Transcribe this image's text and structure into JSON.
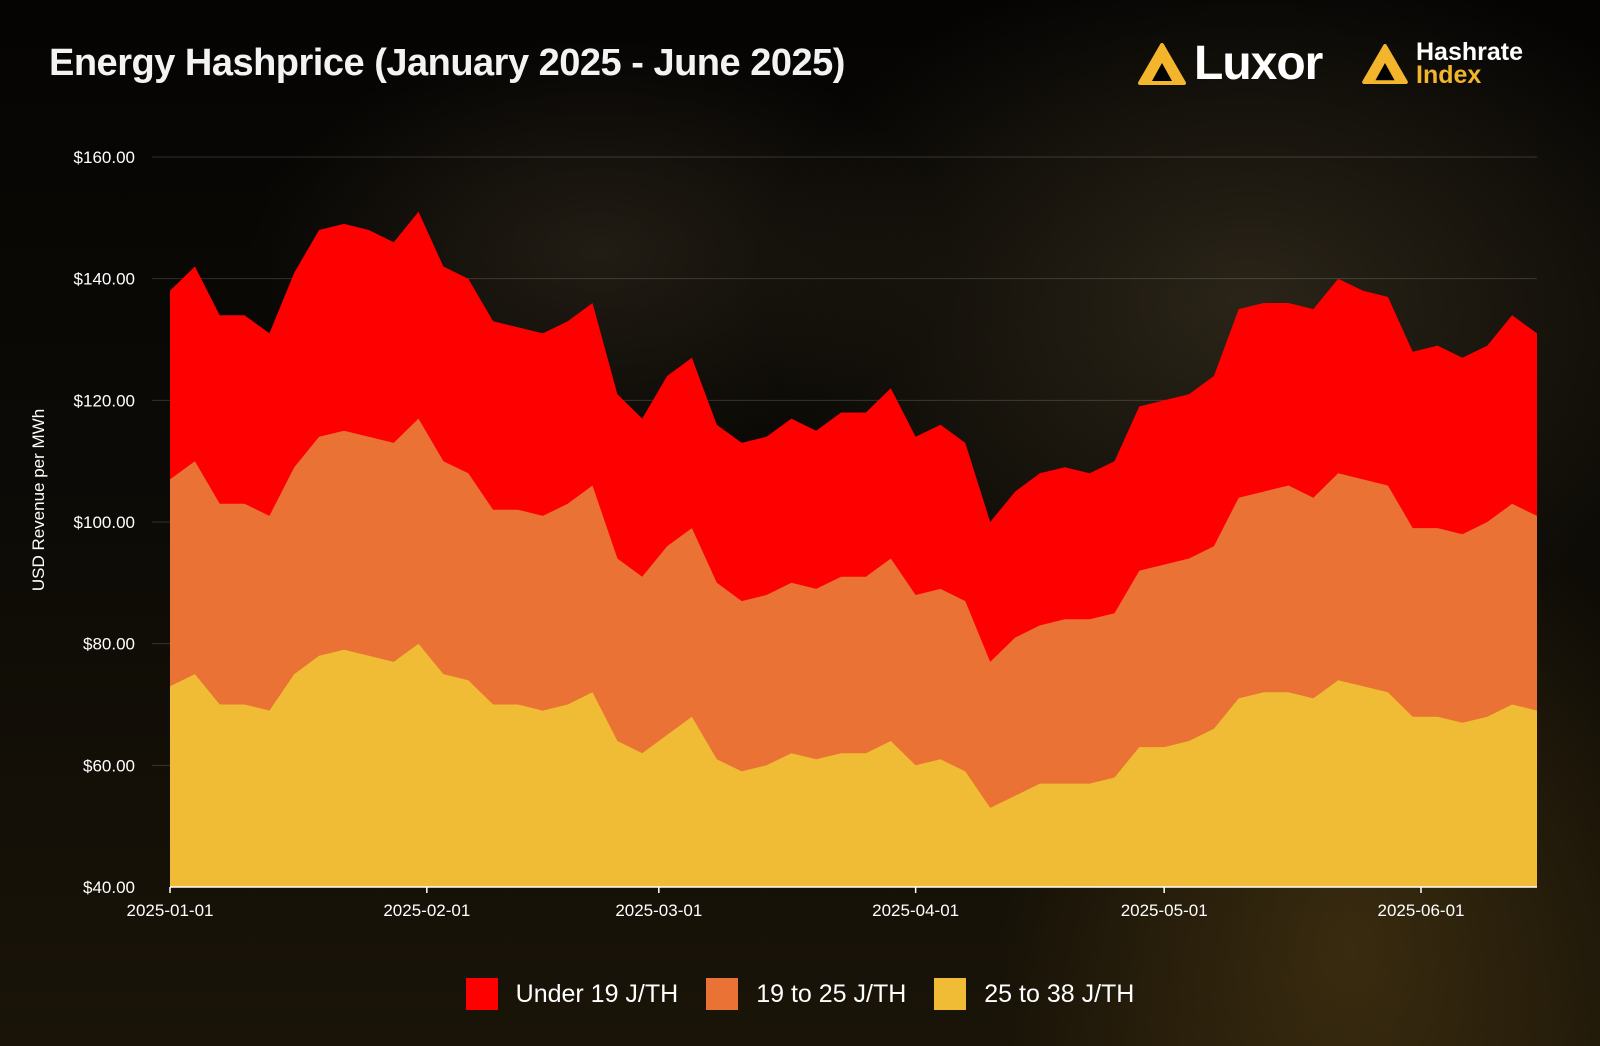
{
  "header": {
    "title": "Energy Hashprice (January 2025  - June 2025)",
    "luxor_word": "Luxor",
    "hashrate_index_line1": "Hashrate",
    "hashrate_index_line2": "Index"
  },
  "chart_data": {
    "type": "area",
    "stacked": false,
    "title": "Energy Hashprice (January 2025  - June 2025)",
    "xlabel": "",
    "ylabel": "USD Revenue per MWh",
    "ylim": [
      40,
      160
    ],
    "yticks": [
      "$40.00",
      "$60.00",
      "$80.00",
      "$100.00",
      "$120.00",
      "$140.00",
      "$160.00"
    ],
    "xticks": [
      "2025-01-01",
      "2025-02-01",
      "2025-03-01",
      "2025-04-01",
      "2025-05-01",
      "2025-06-01"
    ],
    "xlim": [
      "2025-01-01",
      "2025-06-15"
    ],
    "grid": true,
    "legend_position": "bottom",
    "x": [
      "2025-01-01",
      "2025-01-04",
      "2025-01-07",
      "2025-01-10",
      "2025-01-13",
      "2025-01-16",
      "2025-01-19",
      "2025-01-22",
      "2025-01-25",
      "2025-01-28",
      "2025-01-31",
      "2025-02-03",
      "2025-02-06",
      "2025-02-09",
      "2025-02-12",
      "2025-02-15",
      "2025-02-18",
      "2025-02-21",
      "2025-02-24",
      "2025-02-27",
      "2025-03-02",
      "2025-03-05",
      "2025-03-08",
      "2025-03-11",
      "2025-03-14",
      "2025-03-17",
      "2025-03-20",
      "2025-03-23",
      "2025-03-26",
      "2025-03-29",
      "2025-04-01",
      "2025-04-04",
      "2025-04-07",
      "2025-04-10",
      "2025-04-13",
      "2025-04-16",
      "2025-04-19",
      "2025-04-22",
      "2025-04-25",
      "2025-04-28",
      "2025-05-01",
      "2025-05-04",
      "2025-05-07",
      "2025-05-10",
      "2025-05-13",
      "2025-05-16",
      "2025-05-19",
      "2025-05-22",
      "2025-05-25",
      "2025-05-28",
      "2025-05-31",
      "2025-06-03",
      "2025-06-06",
      "2025-06-09",
      "2025-06-12",
      "2025-06-15"
    ],
    "series": [
      {
        "name": "Under 19 J/TH",
        "color": "#ff0000",
        "values": [
          138,
          142,
          134,
          134,
          131,
          141,
          148,
          149,
          148,
          146,
          151,
          142,
          140,
          133,
          132,
          131,
          133,
          136,
          121,
          117,
          124,
          127,
          116,
          113,
          114,
          117,
          115,
          118,
          118,
          122,
          114,
          116,
          113,
          100,
          105,
          108,
          109,
          108,
          110,
          119,
          120,
          121,
          124,
          135,
          136,
          136,
          135,
          140,
          138,
          137,
          128,
          129,
          127,
          129,
          134,
          131
        ]
      },
      {
        "name": "19 to 25 J/TH",
        "color": "#e97234",
        "values": [
          107,
          110,
          103,
          103,
          101,
          109,
          114,
          115,
          114,
          113,
          117,
          110,
          108,
          102,
          102,
          101,
          103,
          106,
          94,
          91,
          96,
          99,
          90,
          87,
          88,
          90,
          89,
          91,
          91,
          94,
          88,
          89,
          87,
          77,
          81,
          83,
          84,
          84,
          85,
          92,
          93,
          94,
          96,
          104,
          105,
          106,
          104,
          108,
          107,
          106,
          99,
          99,
          98,
          100,
          103,
          101
        ]
      },
      {
        "name": "25 to 38 J/TH",
        "color": "#f0bb35",
        "values": [
          73,
          75,
          70,
          70,
          69,
          75,
          78,
          79,
          78,
          77,
          80,
          75,
          74,
          70,
          70,
          69,
          70,
          72,
          64,
          62,
          65,
          68,
          61,
          59,
          60,
          62,
          61,
          62,
          62,
          64,
          60,
          61,
          59,
          53,
          55,
          57,
          57,
          57,
          58,
          63,
          63,
          64,
          66,
          71,
          72,
          72,
          71,
          74,
          73,
          72,
          68,
          68,
          67,
          68,
          70,
          69
        ]
      }
    ]
  }
}
